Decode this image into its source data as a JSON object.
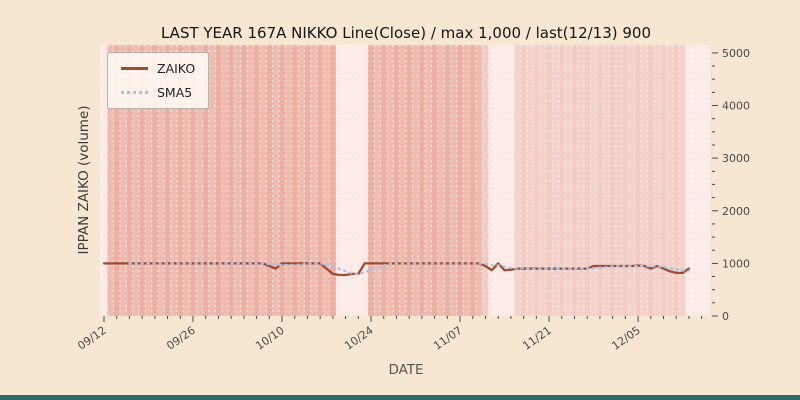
{
  "chart_data": {
    "type": "line",
    "title": "LAST YEAR 167A NIKKO Line(Close) / max 1,000 / last(12/13) 900",
    "xlabel": "DATE",
    "ylabel": "IPPAN ZAIKO (volume)",
    "x_tick_labels": [
      "09/12",
      "09/26",
      "10/10",
      "10/24",
      "11/07",
      "11/21",
      "12/05"
    ],
    "x_tick_day_index": [
      0,
      14,
      28,
      42,
      56,
      70,
      84
    ],
    "y_ticks": [
      0,
      1000,
      2000,
      3000,
      4000,
      5000
    ],
    "ylim": [
      0,
      5150
    ],
    "start_date": "09/12",
    "end_date": "12/13",
    "last_value": 900,
    "max_value": 1000,
    "series": [
      {
        "name": "ZAIKO",
        "color": "#9e4b32",
        "style": "solid",
        "values": [
          1000,
          1000,
          1000,
          1000,
          1000,
          1000,
          1000,
          1000,
          1000,
          1000,
          1000,
          1000,
          1000,
          1000,
          1000,
          1000,
          1000,
          1000,
          1000,
          1000,
          1000,
          1000,
          1000,
          1000,
          1000,
          1000,
          950,
          900,
          1000,
          1000,
          1000,
          1000,
          1000,
          1000,
          1000,
          900,
          800,
          780,
          780,
          800,
          800,
          1000,
          1000,
          1000,
          1000,
          1000,
          1000,
          1000,
          1000,
          1000,
          1000,
          1000,
          1000,
          1000,
          1000,
          1000,
          1000,
          1000,
          1000,
          1000,
          950,
          870,
          1000,
          870,
          880,
          900,
          900,
          900,
          900,
          900,
          900,
          900,
          900,
          900,
          900,
          900,
          900,
          950,
          950,
          950,
          950,
          950,
          950,
          950,
          960,
          950,
          900,
          950,
          900,
          850,
          820,
          820,
          900
        ]
      },
      {
        "name": "SMA5",
        "color": "#a9c3e6",
        "style": "dotted",
        "derived_from": "ZAIKO",
        "window": 5
      }
    ],
    "legend": {
      "position": "upper-left",
      "entries": [
        "ZAIKO",
        "SMA5"
      ]
    },
    "grid": "vertical day stripes with white dashed separators, no horizontal gridlines",
    "phase_split": 60,
    "light_ranges": [
      [
        0,
        0
      ],
      [
        37,
        41
      ],
      [
        61,
        64
      ],
      [
        92,
        95
      ]
    ],
    "colors": {
      "figure_bg": "#f7e6d1",
      "plot_bg": "#f9e8e3",
      "stripe_dark": "#ecb0a4",
      "stripe_light": "#f3ccc3",
      "stripe_pale": "#fbeae6",
      "separator": "#ffffff",
      "line": "#9e4b32",
      "sma": "#a9c3e6",
      "tick_text": "#4a4a4a",
      "footer_bar": "#2d6868"
    }
  }
}
